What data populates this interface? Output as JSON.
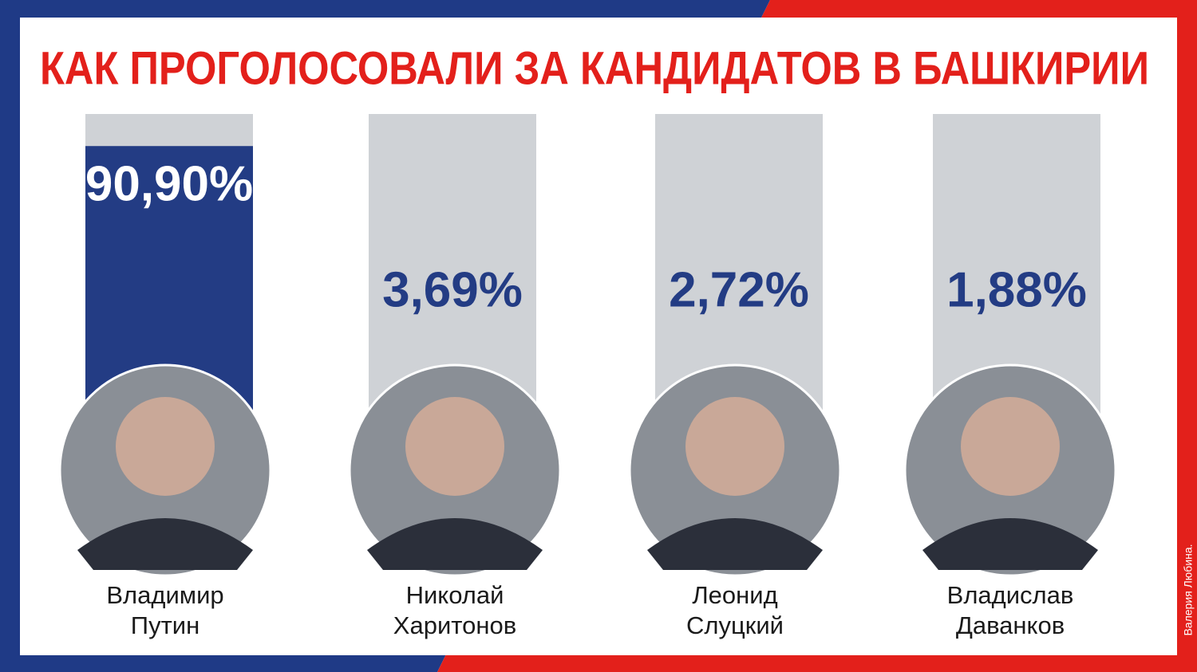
{
  "chart_data": {
    "type": "bar",
    "title": "КАК ПРОГОЛОСОВАЛИ ЗА КАНДИДАТОВ В БАШКИРИИ",
    "categories": [
      "Владимир Путин",
      "Николай Харитонов",
      "Леонид Слуцкий",
      "Владислав Даванков"
    ],
    "values": [
      90.9,
      3.69,
      2.72,
      1.88
    ],
    "value_labels": [
      "90,90%",
      "3,69%",
      "2,72%",
      "1,88%"
    ],
    "color": "#233c84",
    "track_color": "#cfd2d6",
    "ylim": [
      0,
      100
    ],
    "credit": "Валерия Любина."
  }
}
